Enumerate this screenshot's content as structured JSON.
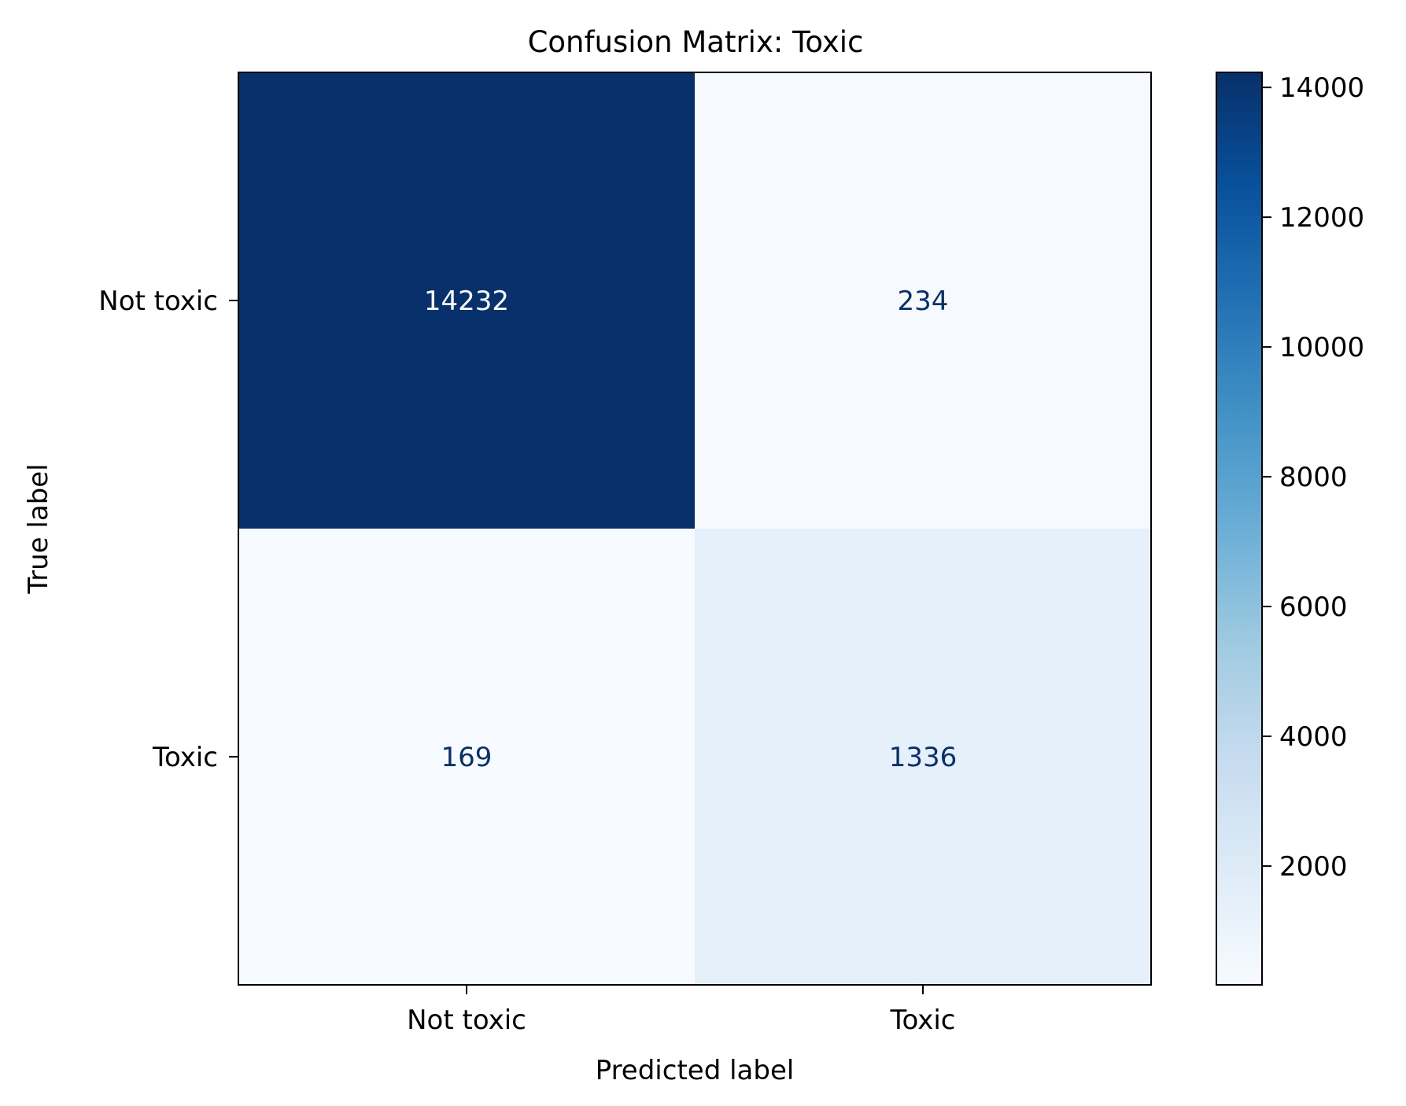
{
  "chart_data": {
    "type": "heatmap",
    "title": "Confusion Matrix: Toxic",
    "xlabel": "Predicted label",
    "ylabel": "True label",
    "x_categories": [
      "Not toxic",
      "Toxic"
    ],
    "y_categories": [
      "Not toxic",
      "Toxic"
    ],
    "values": [
      [
        14232,
        234
      ],
      [
        169,
        1336
      ]
    ],
    "colormap": "Blues",
    "colorbar": {
      "range": [
        169,
        14232
      ],
      "ticks": [
        2000,
        4000,
        6000,
        8000,
        10000,
        12000,
        14000
      ]
    },
    "grid": false,
    "colors": {
      "low": "#f7fbff",
      "high": "#08306b",
      "text_on_dark": "#f7fbff",
      "text_on_light": "#08306b"
    }
  }
}
